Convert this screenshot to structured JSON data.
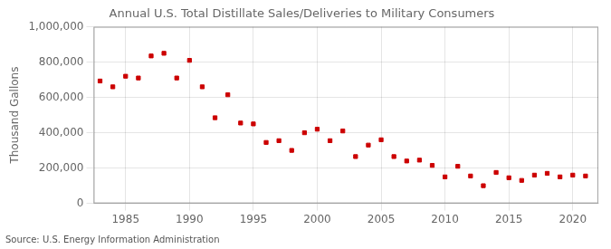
{
  "chart_data": {
    "type": "scatter",
    "title": "Annual U.S. Total Distillate Sales/Deliveries to Military Consumers",
    "ylabel": "Thousand Gallons",
    "annotation": "Source: U.S. Energy Information Administration",
    "x": [
      1983,
      1984,
      1985,
      1986,
      1987,
      1988,
      1989,
      1990,
      1991,
      1992,
      1993,
      1994,
      1995,
      1996,
      1997,
      1998,
      1999,
      2000,
      2001,
      2002,
      2003,
      2004,
      2005,
      2006,
      2007,
      2008,
      2009,
      2010,
      2011,
      2012,
      2013,
      2014,
      2015,
      2016,
      2017,
      2018,
      2019,
      2020,
      2021
    ],
    "values": [
      693000,
      660000,
      720000,
      710000,
      835000,
      850000,
      710000,
      810000,
      660000,
      485000,
      615000,
      455000,
      450000,
      345000,
      355000,
      300000,
      400000,
      420000,
      355000,
      410000,
      265000,
      330000,
      360000,
      265000,
      240000,
      245000,
      215000,
      150000,
      210000,
      155000,
      100000,
      175000,
      145000,
      130000,
      160000,
      170000,
      150000,
      160000,
      155000
    ],
    "color": "#cc0000",
    "marker": "square",
    "xlim": [
      1982.5,
      2022
    ],
    "xticks": [
      1985,
      1990,
      1995,
      2000,
      2005,
      2010,
      2015,
      2020
    ],
    "ylim": [
      0,
      1000000
    ],
    "yticks": [
      0,
      {
        "value": 200000,
        "label": "200,000"
      },
      {
        "value": 400000,
        "label": "400,000"
      },
      {
        "value": 600000,
        "label": "600,000"
      },
      {
        "value": 800000,
        "label": "800,000"
      },
      {
        "value": 1000000,
        "label": "1,000,000"
      }
    ],
    "grid": true
  }
}
